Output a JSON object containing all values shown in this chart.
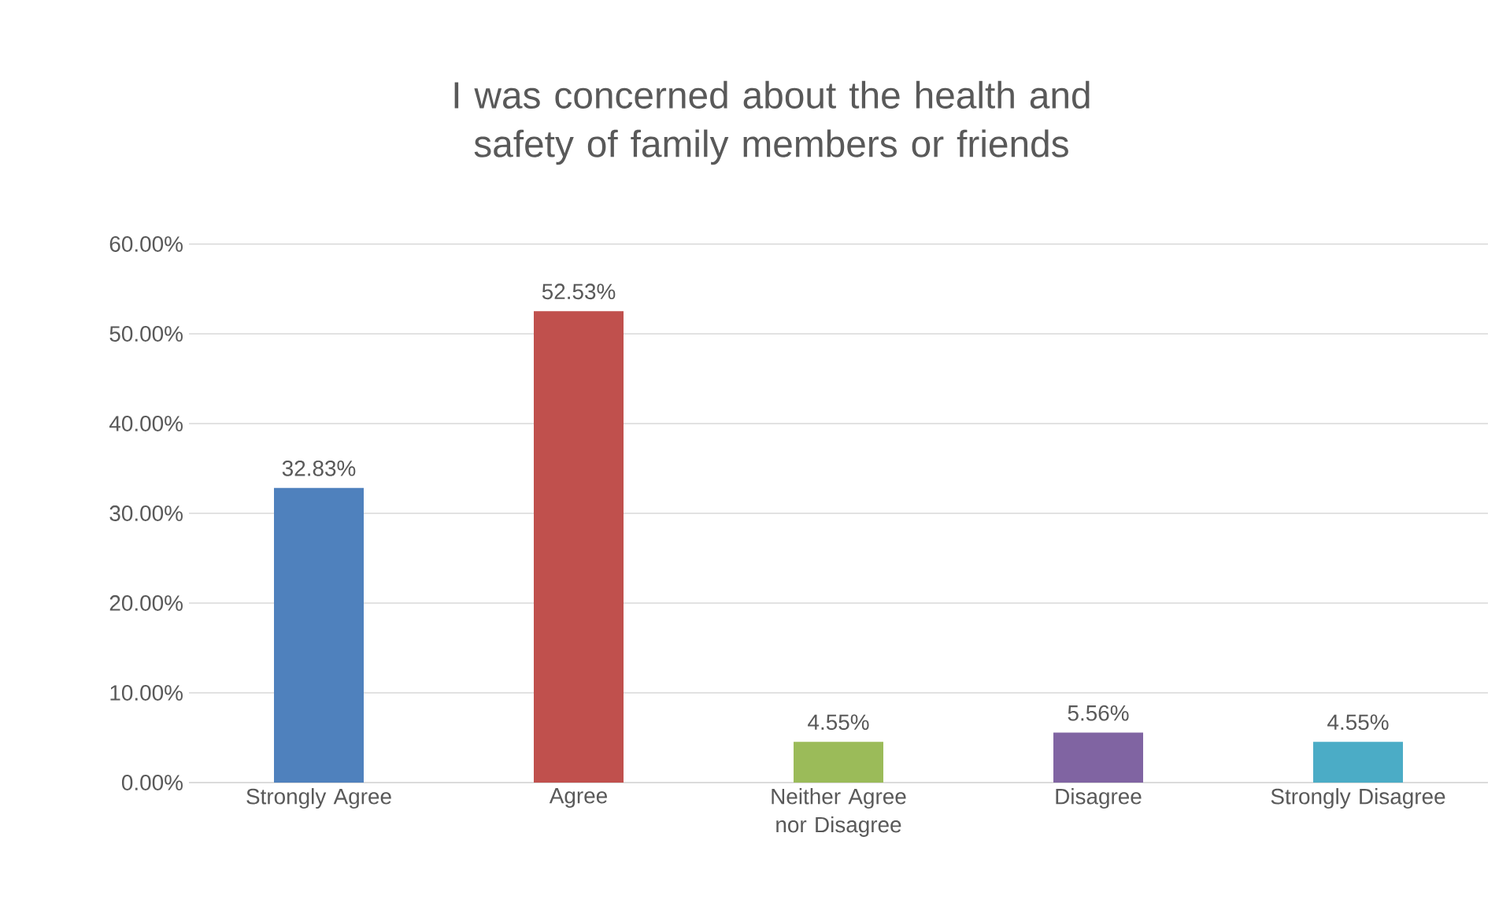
{
  "chart_data": {
    "type": "bar",
    "title": "I was concerned about the health and safety of family members or friends",
    "categories": [
      "Strongly Agree",
      "Agree",
      "Neither Agree nor Disagree",
      "Disagree",
      "Strongly Disagree"
    ],
    "values": [
      32.83,
      52.53,
      4.55,
      5.56,
      4.55
    ],
    "value_labels": [
      "32.83%",
      "52.53%",
      "4.55%",
      "5.56%",
      "4.55%"
    ],
    "colors": [
      "#4f81bd",
      "#c0504d",
      "#9bbb59",
      "#8064a2",
      "#4bacc6"
    ],
    "ylim": [
      0,
      60
    ],
    "yticks": [
      {
        "value": 0,
        "label": "0.00%"
      },
      {
        "value": 10,
        "label": "10.00%"
      },
      {
        "value": 20,
        "label": "20.00%"
      },
      {
        "value": 30,
        "label": "30.00%"
      },
      {
        "value": 40,
        "label": "40.00%"
      },
      {
        "value": 50,
        "label": "50.00%"
      },
      {
        "value": 60,
        "label": "60.00%"
      }
    ],
    "grid": "y",
    "legend": false
  }
}
